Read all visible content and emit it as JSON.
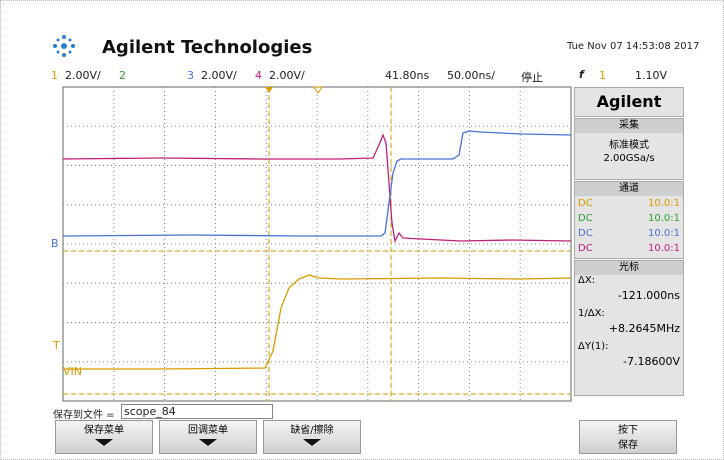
{
  "header": {
    "brand": "Agilent Technologies",
    "datetime": "Tue Nov 07 14:53:08 2017"
  },
  "status": {
    "ch1": "1",
    "ch1_scale": "2.00V/",
    "ch2": "2",
    "ch3": "3",
    "ch3_scale": "2.00V/",
    "ch4": "4",
    "ch4_scale": "2.00V/",
    "delay": "41.80ns",
    "timebase": "50.00ns/",
    "run_state": "停止",
    "trigger_symbol": "f",
    "trigger_source": "1",
    "trigger_level": "1.10V"
  },
  "markers": {
    "ch3": "B",
    "ch1": "VIN",
    "trigger": "T"
  },
  "panel": {
    "logo": "Agilent",
    "acquire": {
      "title": "采集",
      "mode": "标准模式",
      "rate": "2.00GSa/s"
    },
    "channels": {
      "title": "通道",
      "rows": [
        {
          "coupling": "DC",
          "probe": "10.0:1"
        },
        {
          "coupling": "DC",
          "probe": "10.0:1"
        },
        {
          "coupling": "DC",
          "probe": "10.0:1"
        },
        {
          "coupling": "DC",
          "probe": "10.0:1"
        }
      ]
    },
    "cursors": {
      "title": "光标",
      "dx_label": "ΔX:",
      "dx": "-121.000ns",
      "inv_label": "1/ΔX:",
      "inv": "+8.2645MHz",
      "dy_label": "ΔY(1):",
      "dy": "-7.18600V"
    }
  },
  "footer": {
    "save_label": "保存到文件 =",
    "file": "scope_84",
    "buttons": [
      "保存菜单",
      "回调菜单",
      "缺省/擦除"
    ],
    "save_button": [
      "按下",
      "保存"
    ]
  }
}
